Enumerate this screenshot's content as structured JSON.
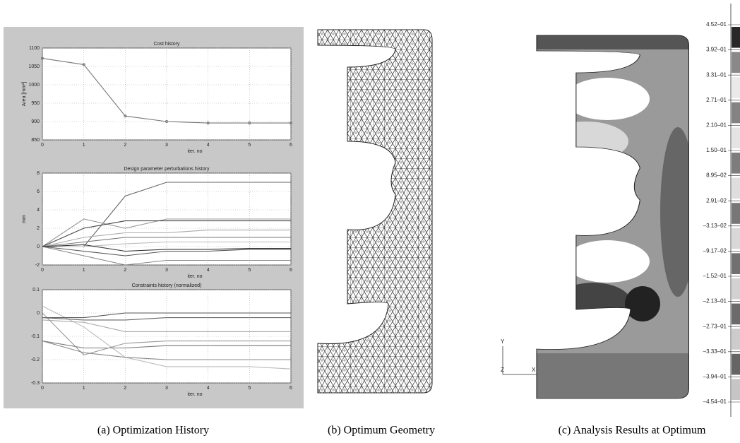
{
  "chart_data": [
    {
      "type": "line",
      "title": "Cost history",
      "y_label": "Area [mm²]",
      "x_label": "iter. no",
      "x": [
        0,
        1,
        2,
        3,
        4,
        5,
        6
      ],
      "xlim": [
        0,
        6
      ],
      "xticks": [
        0,
        1,
        2,
        3,
        4,
        5,
        6
      ],
      "ylim": [
        850,
        1100
      ],
      "yticks": [
        850,
        900,
        950,
        1000,
        1050,
        1100
      ],
      "grid": true,
      "markers": true,
      "series": [
        {
          "color": "#777777",
          "values": [
            1072,
            1055,
            915,
            900,
            896,
            896,
            896
          ]
        }
      ]
    },
    {
      "type": "line",
      "title": "Design parameter perturbations history",
      "y_label": "mm",
      "x_label": "iter. no",
      "x": [
        0,
        1,
        2,
        3,
        4,
        5,
        6
      ],
      "xlim": [
        0,
        6
      ],
      "xticks": [
        0,
        1,
        2,
        3,
        4,
        5,
        6
      ],
      "ylim": [
        -2,
        8
      ],
      "yticks": [
        -2,
        0,
        2,
        4,
        6,
        8
      ],
      "grid": true,
      "markers": false,
      "series": [
        {
          "color": "#666666",
          "values": [
            0,
            0,
            5.5,
            7,
            7,
            7,
            7
          ]
        },
        {
          "color": "#999999",
          "values": [
            0,
            3,
            2,
            3,
            3,
            3,
            3
          ]
        },
        {
          "color": "#444444",
          "values": [
            0,
            2,
            2.8,
            2.8,
            2.8,
            2.8,
            2.8
          ]
        },
        {
          "color": "#aaaaaa",
          "values": [
            0,
            1,
            1.5,
            1.5,
            1.8,
            1.8,
            1.8
          ]
        },
        {
          "color": "#777777",
          "values": [
            0,
            0.5,
            1,
            1,
            1,
            1,
            1
          ]
        },
        {
          "color": "#bbbbbb",
          "values": [
            0,
            0,
            0.3,
            0.5,
            0.5,
            0.5,
            0.5
          ]
        },
        {
          "color": "#555555",
          "values": [
            0,
            -0.5,
            -1,
            -0.5,
            -0.5,
            -0.3,
            -0.3
          ]
        },
        {
          "color": "#888888",
          "values": [
            0,
            -1,
            -2,
            -1.5,
            -1.5,
            -1.5,
            -1.5
          ]
        },
        {
          "color": "#333333",
          "values": [
            0,
            0.2,
            -0.5,
            -0.3,
            -0.3,
            -0.2,
            -0.2
          ]
        }
      ]
    },
    {
      "type": "line",
      "title": "Constraints history (normalized)",
      "x_label": "iter. no",
      "x": [
        0,
        1,
        2,
        3,
        4,
        5,
        6
      ],
      "xlim": [
        0,
        6
      ],
      "xticks": [
        0,
        1,
        2,
        3,
        4,
        5,
        6
      ],
      "ylim": [
        -0.3,
        0.1
      ],
      "yticks": [
        -0.3,
        -0.2,
        -0.1,
        0,
        0.1
      ],
      "grid": true,
      "markers": false,
      "series": [
        {
          "color": "#bbbbbb",
          "values": [
            0.03,
            -0.06,
            -0.19,
            -0.23,
            -0.23,
            -0.23,
            -0.24
          ]
        },
        {
          "color": "#777777",
          "values": [
            -0.12,
            -0.15,
            -0.15,
            -0.14,
            -0.14,
            -0.14,
            -0.14
          ]
        },
        {
          "color": "#999999",
          "values": [
            0,
            -0.18,
            -0.13,
            -0.12,
            -0.12,
            -0.12,
            -0.12
          ]
        },
        {
          "color": "#555555",
          "values": [
            -0.02,
            -0.02,
            0,
            0,
            0,
            0,
            0
          ]
        },
        {
          "color": "#666666",
          "values": [
            -0.02,
            -0.03,
            -0.03,
            -0.02,
            -0.02,
            -0.02,
            -0.02
          ]
        },
        {
          "color": "#aaaaaa",
          "values": [
            -0.03,
            -0.04,
            -0.08,
            -0.08,
            -0.08,
            -0.08,
            -0.08
          ]
        },
        {
          "color": "#888888",
          "values": [
            -0.12,
            -0.17,
            -0.19,
            -0.2,
            -0.2,
            -0.2,
            -0.2
          ]
        }
      ]
    }
  ],
  "colorbar": {
    "labels": [
      "4.52–01",
      "3.92–01",
      "3.31–01",
      "2.71–01",
      "2.10–01",
      "1.50–01",
      "8.95–02",
      "2.91–02",
      "–3.13–02",
      "–9.17–02",
      "–1.52–01",
      "–2.13–01",
      "–2.73–01",
      "–3.33–01",
      "–3.94–01",
      "–4.54–01"
    ]
  },
  "axes_triad": {
    "y": "Y",
    "z": "Z",
    "x": "X"
  },
  "captions": {
    "a": "(a) Optimization History",
    "b": "(b) Optimum Geometry",
    "c": "(c) Analysis Results at Optimum"
  }
}
